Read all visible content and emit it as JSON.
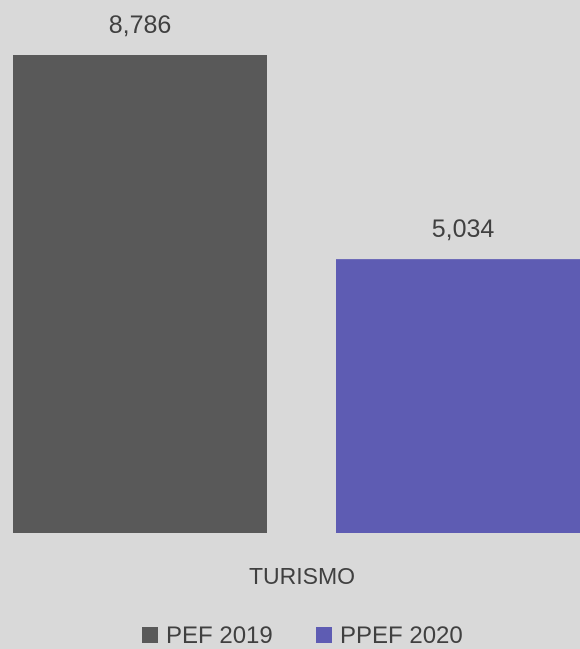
{
  "chart_data": {
    "type": "bar",
    "categories": [
      "TURISMO"
    ],
    "series": [
      {
        "name": "PEF 2019",
        "values": [
          8786
        ],
        "value_labels": [
          "8,786"
        ],
        "color": "#595959"
      },
      {
        "name": "PPEF 2020",
        "values": [
          5034
        ],
        "value_labels": [
          "5,034"
        ],
        "color": "#5e5cb3"
      }
    ],
    "ylim": [
      0,
      8786
    ],
    "grid": false,
    "legend_position": "bottom"
  }
}
